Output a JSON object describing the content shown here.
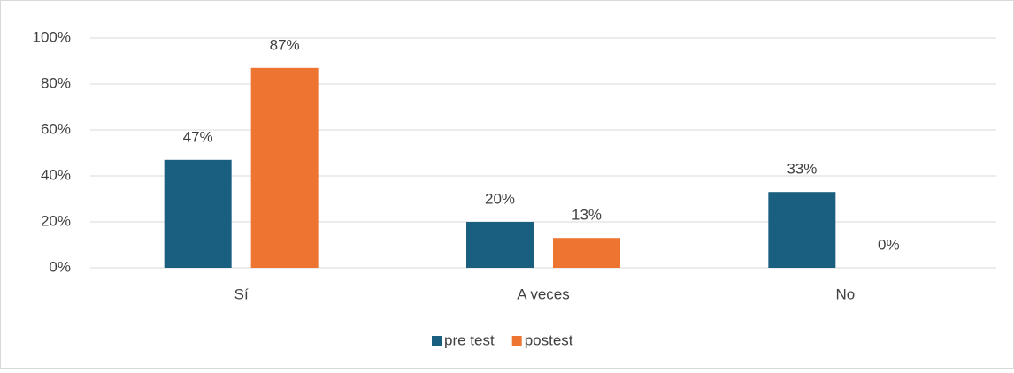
{
  "chart_data": {
    "type": "bar",
    "categories": [
      "Sí",
      "A veces",
      "No"
    ],
    "series": [
      {
        "name": "pre test",
        "color": "#1a5e80",
        "values": [
          47,
          20,
          33
        ],
        "value_labels": [
          "47%",
          "20%",
          "33%"
        ]
      },
      {
        "name": "postest",
        "color": "#ed7431",
        "values": [
          87,
          13,
          0
        ],
        "value_labels": [
          "87%",
          "13%",
          "0%"
        ]
      }
    ],
    "ylim": [
      0,
      100
    ],
    "yticks": [
      {
        "value": 0,
        "label": "0%"
      },
      {
        "value": 20,
        "label": "20%"
      },
      {
        "value": 40,
        "label": "40%"
      },
      {
        "value": 60,
        "label": "60%"
      },
      {
        "value": 80,
        "label": "80%"
      },
      {
        "value": 100,
        "label": "100%"
      }
    ],
    "grid": true,
    "legend": "bottom"
  }
}
